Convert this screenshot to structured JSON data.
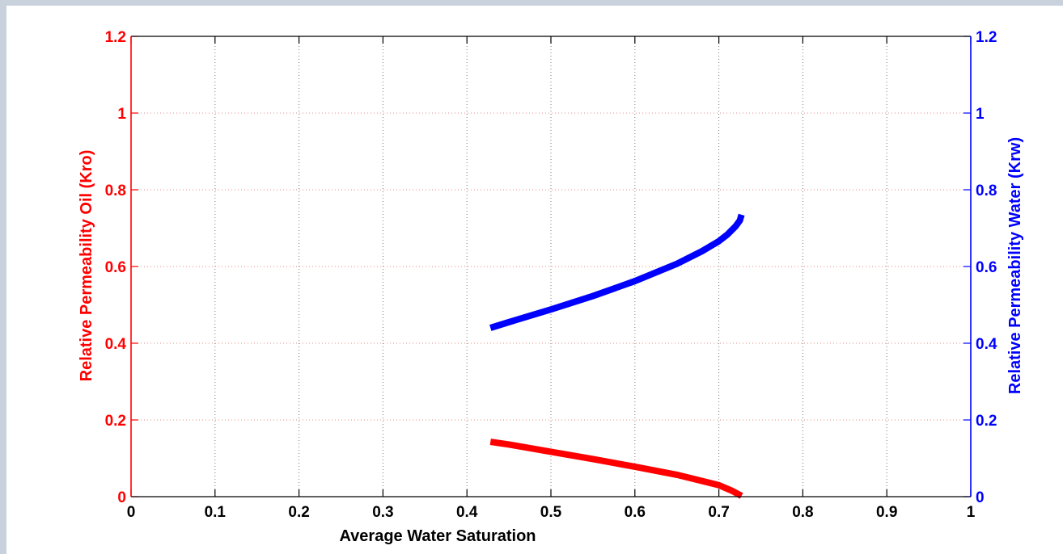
{
  "chart_data": {
    "type": "line",
    "title": "",
    "xlabel": "Average Water Saturation",
    "ylabel_left": "Relative Permeability Oil (Kro)",
    "ylabel_right": "Relative Permeability Water (Krw)",
    "xlim": [
      0,
      1
    ],
    "ylim_left": [
      0,
      1.2
    ],
    "ylim_right": [
      0,
      1.2
    ],
    "x_ticks": [
      "0",
      "0.1",
      "0.2",
      "0.3",
      "0.4",
      "0.5",
      "0.6",
      "0.7",
      "0.8",
      "0.9",
      "1"
    ],
    "y_ticks_left": [
      "0",
      "0.2",
      "0.4",
      "0.6",
      "0.8",
      "1",
      "1.2"
    ],
    "y_ticks_right": [
      "0",
      "0.2",
      "0.4",
      "0.6",
      "0.8",
      "1",
      "1.2"
    ],
    "grid": true,
    "colors": {
      "left_axis": "#ff0000",
      "right_axis": "#0000ff",
      "grid": "#bdbdbd"
    },
    "series": [
      {
        "axis": "left",
        "color": "#ff0000",
        "x": [
          0.428,
          0.45,
          0.5,
          0.55,
          0.6,
          0.65,
          0.7,
          0.715,
          0.727
        ],
        "y": [
          0.143,
          0.136,
          0.117,
          0.098,
          0.078,
          0.057,
          0.03,
          0.016,
          0.002
        ]
      },
      {
        "axis": "right",
        "color": "#0000ff",
        "x": [
          0.428,
          0.45,
          0.5,
          0.55,
          0.6,
          0.65,
          0.68,
          0.7,
          0.71,
          0.72,
          0.725,
          0.727
        ],
        "y": [
          0.44,
          0.455,
          0.488,
          0.523,
          0.562,
          0.607,
          0.64,
          0.666,
          0.683,
          0.705,
          0.72,
          0.735
        ]
      }
    ]
  }
}
